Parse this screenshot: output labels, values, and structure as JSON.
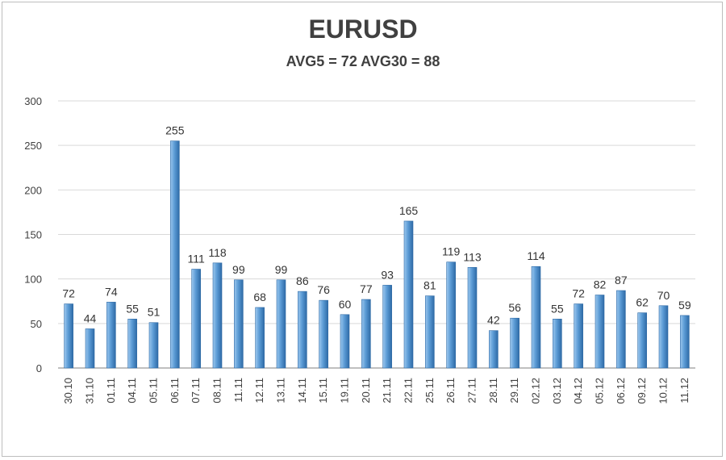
{
  "header": {
    "title": "EURUSD",
    "subtitle": "AVG5 = 72 AVG30 = 88"
  },
  "colors": {
    "bar_light": "#9cc7ee",
    "bar_mid": "#5b9bd5",
    "bar_dark": "#2e6aa6",
    "grid": "#d9d9d9",
    "axis": "#7f7f7f"
  },
  "chart_data": {
    "type": "bar",
    "title": "EURUSD",
    "subtitle": "AVG5 = 72 AVG30 = 88",
    "xlabel": "",
    "ylabel": "",
    "ylim": [
      0,
      300
    ],
    "yticks": [
      0,
      50,
      100,
      150,
      200,
      250,
      300
    ],
    "grid": true,
    "legend": "none",
    "categories": [
      "30.10",
      "31.10",
      "01.11",
      "04.11",
      "05.11",
      "06.11",
      "07.11",
      "08.11",
      "11.11",
      "12.11",
      "13.11",
      "14.11",
      "15.11",
      "19.11",
      "20.11",
      "21.11",
      "22.11",
      "25.11",
      "26.11",
      "27.11",
      "28.11",
      "29.11",
      "02.12",
      "03.12",
      "04.12",
      "05.12",
      "06.12",
      "09.12",
      "10.12",
      "11.12"
    ],
    "values": [
      72,
      44,
      74,
      55,
      51,
      255,
      111,
      118,
      99,
      68,
      99,
      86,
      76,
      60,
      77,
      93,
      165,
      81,
      119,
      113,
      42,
      56,
      114,
      55,
      72,
      82,
      87,
      62,
      70,
      59
    ]
  }
}
